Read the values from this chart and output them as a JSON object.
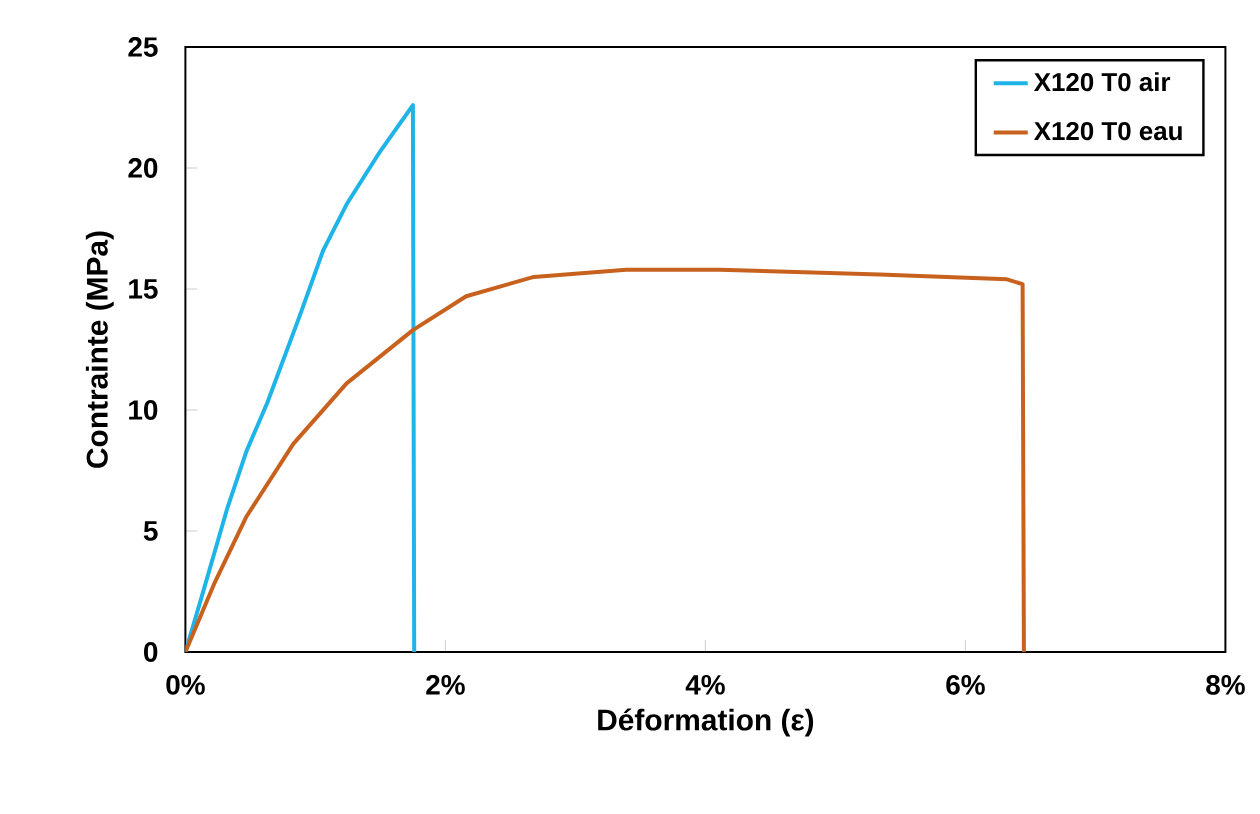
{
  "chart_data": {
    "type": "line",
    "xlabel": "Déformation (ε)",
    "ylabel": "Contrainte (MPa)",
    "xlim": [
      0,
      8
    ],
    "ylim": [
      0,
      25
    ],
    "xticks": [
      {
        "value": 0,
        "label": "0%"
      },
      {
        "value": 2,
        "label": "2%"
      },
      {
        "value": 4,
        "label": "4%"
      },
      {
        "value": 6,
        "label": "6%"
      },
      {
        "value": 8,
        "label": "8%"
      }
    ],
    "yticks": [
      0,
      5,
      10,
      15,
      20,
      25
    ],
    "legend": "top right",
    "grid": false,
    "marker": "none",
    "line_style": "solid",
    "series": [
      {
        "name": "X120 T0 air",
        "color": "#1fb4e8",
        "x": [
          0,
          0.11,
          0.32,
          0.47,
          0.63,
          0.88,
          1.06,
          1.24,
          1.5,
          1.75,
          1.76
        ],
        "values": [
          0,
          2.0,
          5.9,
          8.3,
          10.3,
          13.9,
          16.6,
          18.5,
          20.7,
          22.6,
          0
        ]
      },
      {
        "name": "X120 T0 eau",
        "color": "#c8611e",
        "x": [
          0,
          0.22,
          0.47,
          0.83,
          1.24,
          1.75,
          2.16,
          2.68,
          3.39,
          3.8,
          4.11,
          5.34,
          6.32,
          6.44,
          6.45
        ],
        "values": [
          0,
          2.8,
          5.6,
          8.6,
          11.1,
          13.3,
          14.7,
          15.5,
          15.8,
          15.8,
          15.8,
          15.6,
          15.4,
          15.2,
          0
        ]
      }
    ]
  }
}
